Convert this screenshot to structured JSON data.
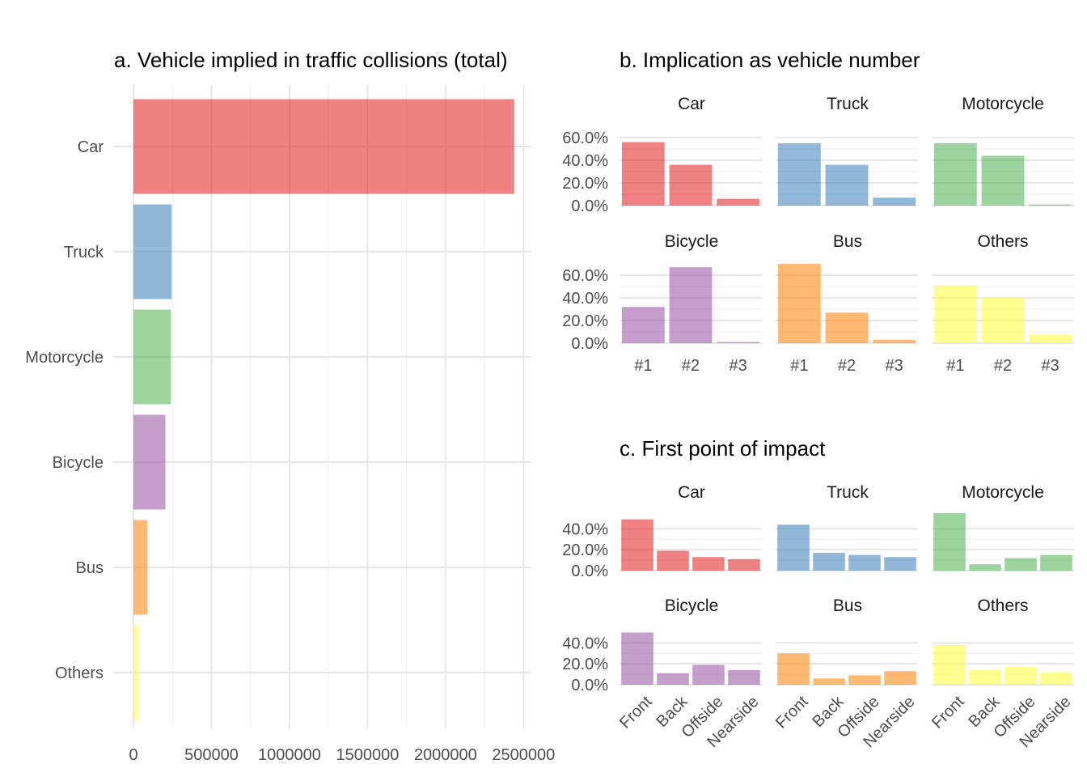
{
  "chart_data": [
    {
      "type": "bar",
      "orientation": "horizontal",
      "title": "a. Vehicle implied in traffic collisions (total)",
      "categories": [
        "Car",
        "Truck",
        "Motorcycle",
        "Bicycle",
        "Bus",
        "Others"
      ],
      "values": [
        2440000,
        245000,
        240000,
        205000,
        90000,
        30000
      ],
      "x_ticks": [
        "0",
        "500000",
        "1000000",
        "1500000",
        "2000000",
        "2500000"
      ],
      "xlim": [
        0,
        2550000
      ],
      "grid": true
    },
    {
      "type": "bar",
      "title": "b. Implication as vehicle number",
      "categories": [
        "#1",
        "#2",
        "#3"
      ],
      "y_ticks": [
        "0.0%",
        "20.0%",
        "40.0%",
        "60.0%"
      ],
      "ylim": [
        0,
        0.7
      ],
      "facets": [
        {
          "name": "Car",
          "values": [
            0.56,
            0.36,
            0.06
          ]
        },
        {
          "name": "Truck",
          "values": [
            0.55,
            0.36,
            0.07
          ]
        },
        {
          "name": "Motorcycle",
          "values": [
            0.55,
            0.44,
            0.01
          ]
        },
        {
          "name": "Bicycle",
          "values": [
            0.32,
            0.67,
            0.01
          ]
        },
        {
          "name": "Bus",
          "values": [
            0.7,
            0.27,
            0.03
          ]
        },
        {
          "name": "Others",
          "values": [
            0.51,
            0.4,
            0.08
          ]
        }
      ]
    },
    {
      "type": "bar",
      "title": "c. First point of impact",
      "categories": [
        "Front",
        "Back",
        "Offside",
        "Nearside"
      ],
      "y_ticks": [
        "0.0%",
        "20.0%",
        "40.0%"
      ],
      "ylim": [
        0,
        0.55
      ],
      "facets": [
        {
          "name": "Car",
          "values": [
            0.49,
            0.19,
            0.13,
            0.11
          ]
        },
        {
          "name": "Truck",
          "values": [
            0.44,
            0.17,
            0.15,
            0.13
          ]
        },
        {
          "name": "Motorcycle",
          "values": [
            0.55,
            0.06,
            0.12,
            0.15
          ]
        },
        {
          "name": "Bicycle",
          "values": [
            0.5,
            0.11,
            0.19,
            0.14
          ]
        },
        {
          "name": "Bus",
          "values": [
            0.3,
            0.06,
            0.09,
            0.13
          ]
        },
        {
          "name": "Others",
          "values": [
            0.38,
            0.14,
            0.17,
            0.12
          ]
        }
      ]
    }
  ],
  "colors": {
    "Car": "#e41a1c",
    "Truck": "#377eb8",
    "Motorcycle": "#4daf4a",
    "Bicycle": "#984ea3",
    "Bus": "#ff7f00",
    "Others": "#ffff33"
  }
}
